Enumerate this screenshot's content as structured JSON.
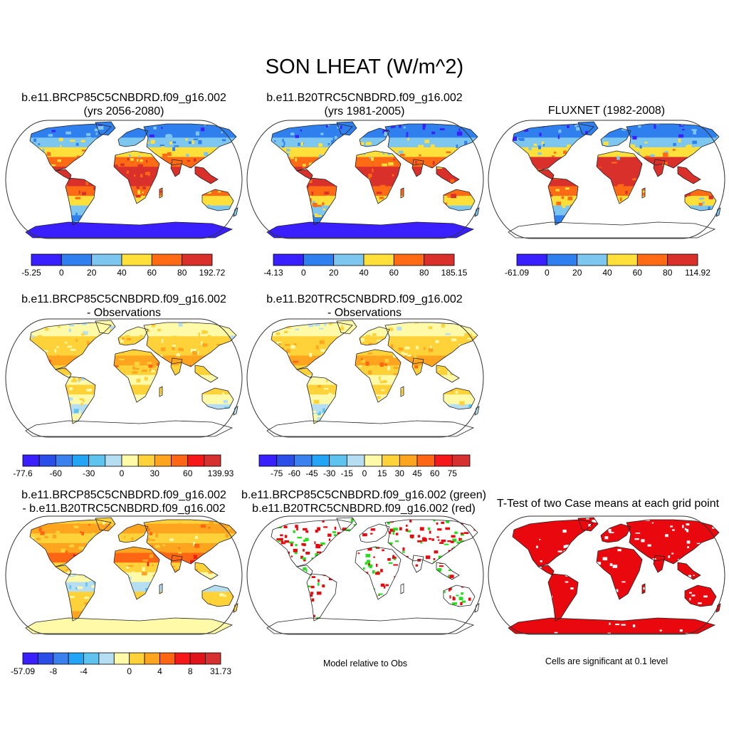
{
  "title": "SON LHEAT (W/m^2)",
  "colors": {
    "abs": [
      "#3a1fff",
      "#2f80ee",
      "#7cc6f0",
      "#ffe03a",
      "#ff6a14",
      "#d9302b"
    ],
    "diff": [
      "#3a1fff",
      "#2b4de8",
      "#3a80ee",
      "#22a5f5",
      "#5ec3ef",
      "#b6def3",
      "#fffaa8",
      "#ffd23a",
      "#ffa41e",
      "#ff6613",
      "#f61818",
      "#d63030"
    ],
    "diff13": [
      "#3a1fff",
      "#2b4de8",
      "#3a80ee",
      "#22a5f5",
      "#5ec3ef",
      "#b6def3",
      "#fffaa8",
      "#ffd23a",
      "#ffa41e",
      "#ff6613",
      "#f61818",
      "#e0121a",
      "#d63030"
    ],
    "land_outline": "#222222",
    "green": "#22e01a",
    "red": "#e8080d"
  },
  "panels": [
    {
      "id": "case1",
      "title_line1": "b.e11.BRCP85C5CNBDRD.f09_g16.002",
      "title_line2": "(yrs 2056-2080)",
      "colorbar": [
        "-5.25",
        "0",
        "20",
        "40",
        "60",
        "80",
        "192.72"
      ]
    },
    {
      "id": "case2",
      "title_line1": "b.e11.B20TRC5CNBDRD.f09_g16.002",
      "title_line2": "(yrs 1981-2005)",
      "colorbar": [
        "-4.13",
        "0",
        "20",
        "40",
        "60",
        "80",
        "185.15"
      ]
    },
    {
      "id": "obs",
      "title_line1": "FLUXNET (1982-2008)",
      "colorbar": [
        "-61.09",
        "0",
        "20",
        "40",
        "60",
        "80",
        "114.92"
      ]
    },
    {
      "id": "case1-minus-obs",
      "title_line1": "b.e11.BRCP85C5CNBDRD.f09_g16.002",
      "title_line2": "- Observations",
      "colorbar": [
        "-77.6",
        "-60",
        "-30",
        "0",
        "30",
        "60",
        "139.93"
      ]
    },
    {
      "id": "case2-minus-obs",
      "title_line1": "b.e11.B20TRC5CNBDRD.f09_g16.002",
      "title_line2": "- Observations",
      "colorbar": [
        "-75",
        "-60",
        "-45",
        "-30",
        "-15",
        "0",
        "15",
        "30",
        "45",
        "60",
        "75"
      ]
    },
    {
      "id": "case1-minus-case2",
      "title_line1": "b.e11.BRCP85C5CNBDRD.f09_g16.002",
      "title_line2": "- b.e11.B20TRC5CNBDRD.f09_g16.002",
      "colorbar": [
        "-57.09",
        "-8",
        "-4",
        "0",
        "4",
        "8",
        "31.73"
      ]
    },
    {
      "id": "model-relative",
      "title_line1": "b.e11.BRCP85C5CNBDRD.f09_g16.002 (green)",
      "title_line2": "b.e11.B20TRC5CNBDRD.f09_g16.002 (red)",
      "note": "Model relative to Obs"
    },
    {
      "id": "ttest",
      "title_line1": "T-Test of two Case means at each grid point",
      "note": "Cells are significant at 0.1 level"
    }
  ]
}
